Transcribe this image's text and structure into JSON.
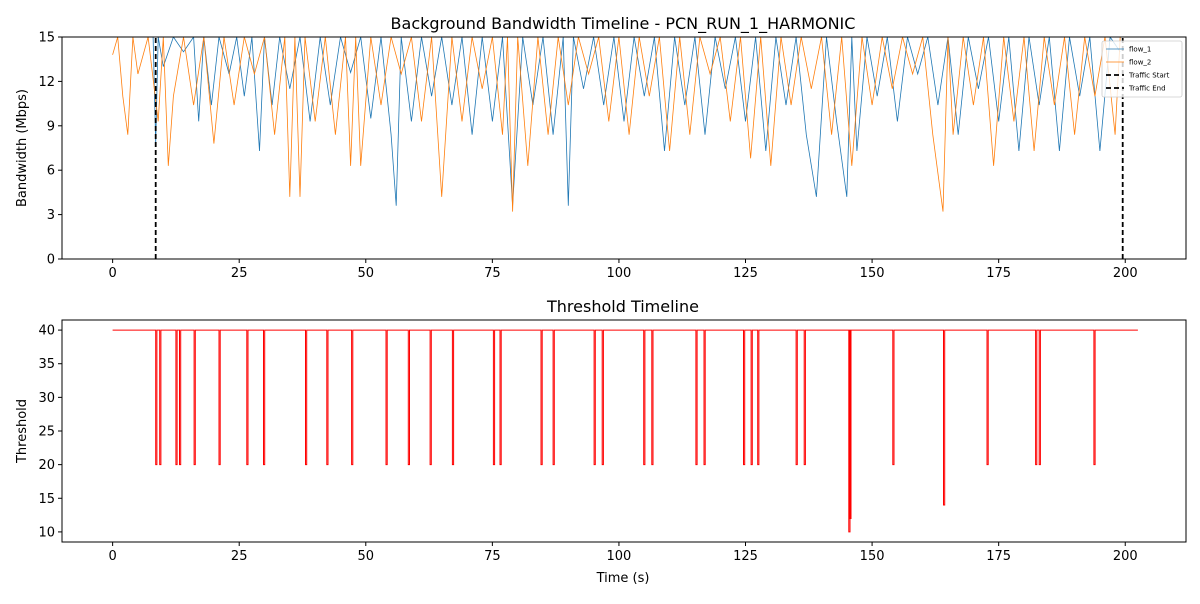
{
  "chart_data": [
    {
      "type": "line",
      "title": "Background Bandwidth Timeline - PCN_RUN_1_HARMONIC",
      "xlabel": "",
      "ylabel": "Bandwidth (Mbps)",
      "xlim": [
        -10,
        212
      ],
      "ylim": [
        0,
        15
      ],
      "xticks": [
        0,
        25,
        50,
        75,
        100,
        125,
        150,
        175,
        200
      ],
      "yticks": [
        0,
        3,
        6,
        9,
        12,
        15
      ],
      "grid": false,
      "legend": "top-right",
      "series": [
        {
          "name": "flow_1",
          "color": "#1f77b4",
          "x": [
            8.0,
            8.5,
            9.0,
            10.0,
            12.0,
            14.0,
            16.0,
            17.0,
            18.0,
            19.5,
            21.0,
            23.0,
            24.5,
            26.0,
            27.5,
            29.0,
            30.0,
            31.5,
            33.0,
            35.0,
            37.0,
            39.0,
            41.0,
            43.0,
            45.0,
            47.0,
            49.0,
            51.0,
            53.0,
            55.0,
            56.0,
            57.0,
            59.0,
            61.0,
            63.0,
            65.0,
            67.0,
            69.0,
            71.0,
            73.0,
            75.0,
            77.0,
            79.0,
            81.0,
            83.0,
            85.0,
            87.0,
            89.0,
            90.0,
            91.0,
            93.0,
            95.0,
            97.0,
            99.0,
            101.0,
            103.0,
            105.0,
            107.0,
            109.0,
            111.0,
            113.0,
            115.0,
            117.0,
            119.0,
            121.0,
            123.0,
            125.0,
            127.0,
            129.0,
            131.0,
            133.0,
            135.0,
            137.0,
            139.0,
            141.0,
            143.0,
            145.0,
            146.0,
            147.0,
            149.0,
            151.0,
            153.0,
            155.0,
            157.0,
            159.0,
            161.0,
            163.0,
            165.0,
            167.0,
            169.0,
            171.0,
            173.0,
            175.0,
            177.0,
            179.0,
            181.0,
            183.0,
            185.0,
            187.0,
            189.0,
            191.0,
            193.0,
            195.0,
            197.0,
            199.0
          ],
          "y": [
            15.0,
            7.8,
            15.0,
            13.0,
            15.0,
            14.0,
            15.0,
            9.3,
            15.0,
            10.4,
            15.0,
            12.5,
            15.0,
            11.0,
            15.0,
            7.3,
            15.0,
            10.4,
            15.0,
            11.5,
            15.0,
            9.3,
            15.0,
            10.4,
            15.0,
            12.6,
            15.0,
            9.5,
            15.0,
            8.4,
            3.6,
            15.0,
            9.3,
            15.0,
            11.0,
            15.0,
            10.4,
            15.0,
            8.4,
            15.0,
            9.3,
            15.0,
            3.6,
            15.0,
            10.4,
            15.0,
            8.4,
            15.0,
            3.6,
            15.0,
            11.5,
            15.0,
            10.4,
            15.0,
            9.3,
            15.0,
            11.0,
            15.0,
            7.3,
            15.0,
            10.4,
            15.0,
            8.4,
            15.0,
            11.5,
            15.0,
            9.3,
            15.0,
            7.3,
            15.0,
            10.4,
            15.0,
            8.4,
            4.2,
            15.0,
            9.3,
            4.2,
            15.0,
            7.3,
            15.0,
            11.0,
            15.0,
            9.3,
            15.0,
            12.5,
            15.0,
            10.4,
            15.0,
            8.4,
            15.0,
            11.5,
            15.0,
            9.3,
            15.0,
            7.3,
            15.0,
            10.4,
            15.0,
            7.3,
            15.0,
            11.0,
            15.0,
            7.3,
            15.0,
            14.0
          ]
        },
        {
          "name": "flow_2",
          "color": "#ff7f0e",
          "x": [
            0.0,
            1.0,
            2.0,
            3.0,
            4.0,
            5.0,
            7.0,
            9.0,
            10.0,
            11.0,
            12.0,
            14.0,
            16.0,
            18.0,
            20.0,
            22.0,
            24.0,
            26.0,
            28.0,
            30.0,
            32.0,
            34.0,
            35.0,
            36.0,
            37.0,
            38.0,
            40.0,
            42.0,
            44.0,
            46.0,
            47.0,
            48.0,
            49.0,
            51.0,
            53.0,
            55.0,
            57.0,
            59.0,
            61.0,
            63.0,
            65.0,
            67.0,
            69.0,
            71.0,
            73.0,
            75.0,
            77.0,
            78.0,
            79.0,
            80.0,
            82.0,
            84.0,
            86.0,
            88.0,
            90.0,
            92.0,
            94.0,
            96.0,
            98.0,
            100.0,
            102.0,
            104.0,
            106.0,
            108.0,
            110.0,
            112.0,
            114.0,
            116.0,
            118.0,
            120.0,
            122.0,
            124.0,
            126.0,
            128.0,
            130.0,
            132.0,
            134.0,
            136.0,
            138.0,
            140.0,
            142.0,
            144.0,
            146.0,
            148.0,
            150.0,
            152.0,
            154.0,
            156.0,
            158.0,
            160.0,
            162.0,
            164.0,
            165.0,
            166.0,
            168.0,
            170.0,
            172.0,
            174.0,
            176.0,
            178.0,
            180.0,
            182.0,
            184.0,
            186.0,
            188.0,
            190.0,
            192.0,
            194.0,
            196.0,
            198.0,
            199.0
          ],
          "y": [
            13.8,
            15.0,
            11.0,
            8.4,
            15.0,
            12.5,
            15.0,
            9.3,
            15.0,
            6.3,
            11.0,
            15.0,
            10.4,
            15.0,
            7.8,
            15.0,
            10.4,
            15.0,
            12.5,
            15.0,
            8.4,
            15.0,
            4.2,
            15.0,
            4.2,
            15.0,
            9.3,
            15.0,
            8.4,
            15.0,
            6.3,
            15.0,
            6.3,
            15.0,
            10.4,
            15.0,
            12.5,
            15.0,
            9.3,
            15.0,
            4.2,
            15.0,
            9.3,
            15.0,
            11.5,
            15.0,
            8.4,
            15.0,
            3.2,
            15.0,
            6.3,
            15.0,
            8.4,
            15.0,
            10.4,
            15.0,
            12.5,
            15.0,
            9.3,
            15.0,
            8.4,
            15.0,
            11.0,
            15.0,
            7.3,
            15.0,
            8.4,
            15.0,
            12.5,
            15.0,
            9.3,
            15.0,
            6.8,
            15.0,
            6.3,
            15.0,
            10.4,
            15.0,
            11.5,
            15.0,
            8.4,
            15.0,
            6.3,
            15.0,
            10.4,
            15.0,
            11.5,
            15.0,
            12.5,
            15.0,
            8.4,
            3.2,
            15.0,
            8.4,
            15.0,
            10.4,
            15.0,
            6.3,
            15.0,
            9.3,
            15.0,
            7.3,
            15.0,
            10.4,
            15.0,
            8.4,
            15.0,
            11.0,
            15.0,
            8.4,
            15.0
          ]
        },
        {
          "name": "Traffic Start",
          "color": "#000000",
          "style": "dashed",
          "x": [
            8.5,
            8.5
          ],
          "y": [
            0,
            15
          ]
        },
        {
          "name": "Traffic End",
          "color": "#000000",
          "style": "dashed",
          "x": [
            199.5,
            199.5
          ],
          "y": [
            0,
            15
          ]
        }
      ]
    },
    {
      "type": "line",
      "title": "Threshold Timeline",
      "xlabel": "Time (s)",
      "ylabel": "Threshold",
      "xlim": [
        -10,
        212
      ],
      "ylim": [
        8.5,
        41.5
      ],
      "xticks": [
        0,
        25,
        50,
        75,
        100,
        125,
        150,
        175,
        200
      ],
      "yticks": [
        10,
        15,
        20,
        25,
        30,
        35,
        40
      ],
      "grid": false,
      "legend": "none",
      "baseline": 40,
      "series": [
        {
          "name": "",
          "color": "#ff0000",
          "x": [
            8.5,
            9.3,
            12.5,
            13.2,
            16.1,
            21.0,
            26.5,
            29.8,
            38.1,
            42.3,
            47.2,
            54.0,
            58.4,
            62.7,
            67.1,
            75.2,
            76.5,
            84.6,
            87.0,
            95.1,
            96.7,
            104.9,
            106.5,
            115.2,
            116.8,
            124.6,
            126.1,
            127.4,
            135.0,
            136.6,
            145.4,
            145.6,
            154.1,
            164.1,
            172.7,
            182.3,
            183.0,
            193.8
          ],
          "y": [
            20,
            20,
            20,
            20,
            20,
            20,
            20,
            20,
            20,
            20,
            20,
            20,
            20,
            20,
            20,
            20,
            20,
            20,
            20,
            20,
            20,
            20,
            20,
            20,
            20,
            20,
            20,
            20,
            20,
            20,
            10,
            12,
            20,
            14,
            20,
            20,
            20,
            20
          ]
        }
      ]
    }
  ]
}
